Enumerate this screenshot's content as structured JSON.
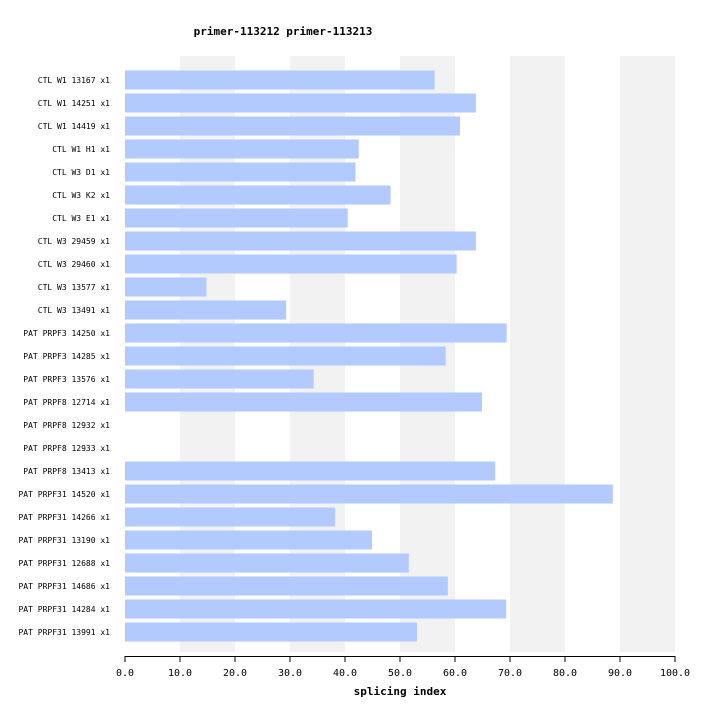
{
  "chart_data": {
    "type": "bar",
    "orientation": "horizontal",
    "title": "primer-113212  primer-113213",
    "xlabel": "splicing index",
    "ylabel": "",
    "xlim": [
      0,
      100
    ],
    "xticks": [
      "0.0",
      "10.0",
      "20.0",
      "30.0",
      "40.0",
      "50.0",
      "60.0",
      "70.0",
      "80.0",
      "90.0",
      "100.0"
    ],
    "categories": [
      "CTL W1 13167 x1",
      "CTL W1 14251 x1",
      "CTL W1 14419 x1",
      "CTL W1 H1 x1",
      "CTL W3 D1 x1",
      "CTL W3 K2 x1",
      "CTL W3 E1 x1",
      "CTL W3 29459 x1",
      "CTL W3 29460 x1",
      "CTL W3 13577 x1",
      "CTL W3 13491 x1",
      "PAT PRPF3 14250 x1",
      "PAT PRPF3 14285 x1",
      "PAT PRPF3 13576 x1",
      "PAT PRPF8 12714 x1",
      "PAT PRPF8 12932 x1",
      "PAT PRPF8 12933 x1",
      "PAT PRPF8 13413 x1",
      "PAT PRPF31 14520 x1",
      "PAT PRPF31 14266 x1",
      "PAT PRPF31 13190 x1",
      "PAT PRPF31 12688 x1",
      "PAT PRPF31 14686 x1",
      "PAT PRPF31 14284 x1",
      "PAT PRPF31 13991 x1"
    ],
    "values": [
      56.3,
      63.8,
      60.9,
      42.5,
      41.9,
      48.3,
      40.5,
      63.8,
      60.3,
      14.8,
      29.3,
      69.4,
      58.3,
      34.3,
      64.9,
      null,
      null,
      67.3,
      88.7,
      38.2,
      44.9,
      51.6,
      58.7,
      69.3,
      53.1
    ],
    "bar_color": "#b2caff",
    "band_color": "#f2f2f2",
    "grid": "alternating vertical bands"
  }
}
